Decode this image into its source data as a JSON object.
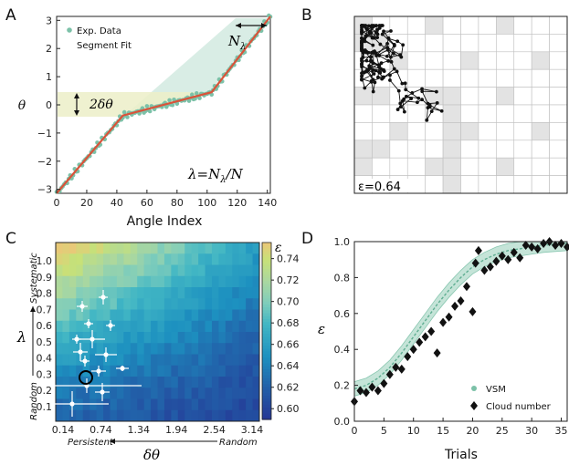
{
  "chart_data": [
    {
      "panel": "A",
      "type": "line",
      "xlabel": "Angle Index",
      "ylabel": "θ",
      "xlim": [
        0,
        142
      ],
      "ylim": [
        -3.14,
        3.14
      ],
      "xticks": [
        0,
        20,
        40,
        60,
        80,
        100,
        120,
        140
      ],
      "yticks": [
        -3,
        -2,
        -1,
        0,
        1,
        2,
        3
      ],
      "legend": [
        "Exp. Data",
        "Segment Fit"
      ],
      "fit_points": [
        [
          0,
          -3.14
        ],
        [
          44,
          -0.38
        ],
        [
          103,
          0.45
        ],
        [
          142,
          3.14
        ]
      ],
      "annotations": {
        "n_lambda": "N",
        "n_lambda_sub": "λ",
        "delta": "2δθ",
        "formula_lhs": "λ=N",
        "formula_sub": "λ",
        "formula_rhs": "/N"
      }
    },
    {
      "panel": "B",
      "type": "scatter",
      "grid_rows": 10,
      "grid_cols": 12,
      "label": "ε=0.64"
    },
    {
      "panel": "C",
      "type": "heatmap",
      "xlabel": "δθ",
      "ylabel": "λ",
      "xticks": [
        "0.14",
        "0.74",
        "1.34",
        "1.94",
        "2.54",
        "3.14"
      ],
      "yticks": [
        "0.1",
        "0.2",
        "0.3",
        "0.4",
        "0.5",
        "0.6",
        "0.7",
        "0.8",
        "0.9",
        "1.0"
      ],
      "colorbar_label": "ε",
      "colorbar_range": [
        0.59,
        0.755
      ],
      "colorbar_ticks": [
        "0.74",
        "0.72",
        "0.70",
        "0.68",
        "0.66",
        "0.64",
        "0.62",
        "0.60"
      ],
      "x_arrow_left": "Persistent",
      "x_arrow_right": "Random",
      "y_arrow_top": "Systematic",
      "y_arrow_bottom": "Random"
    },
    {
      "panel": "D",
      "type": "line",
      "xlabel": "Trials",
      "ylabel": "ε",
      "xlim": [
        0,
        36
      ],
      "ylim": [
        0,
        1.0
      ],
      "xticks": [
        0,
        5,
        10,
        15,
        20,
        25,
        30,
        35
      ],
      "yticks": [
        0.0,
        0.2,
        0.4,
        0.6,
        0.8,
        1.0
      ],
      "series": [
        {
          "name": "VSM",
          "x": [
            0,
            2,
            4,
            6,
            8,
            10,
            12,
            14,
            16,
            18,
            20,
            22,
            24,
            26,
            28,
            30,
            32,
            34,
            36
          ],
          "values": [
            0.18,
            0.2,
            0.24,
            0.3,
            0.38,
            0.47,
            0.56,
            0.65,
            0.73,
            0.8,
            0.86,
            0.9,
            0.93,
            0.95,
            0.96,
            0.97,
            0.98,
            0.985,
            0.99
          ]
        },
        {
          "name": "Cloud number",
          "x": [
            0,
            1,
            2,
            3,
            4,
            5,
            6,
            7,
            8,
            9,
            10,
            11,
            12,
            13,
            14,
            15,
            16,
            17,
            18,
            19,
            20,
            20.5,
            21,
            22,
            23,
            24,
            25,
            26,
            27,
            28,
            29,
            30,
            31,
            32,
            33,
            34,
            35,
            36
          ],
          "values": [
            0.11,
            0.17,
            0.16,
            0.19,
            0.17,
            0.21,
            0.26,
            0.3,
            0.29,
            0.36,
            0.4,
            0.44,
            0.47,
            0.5,
            0.38,
            0.55,
            0.58,
            0.64,
            0.67,
            0.75,
            0.61,
            0.88,
            0.95,
            0.84,
            0.86,
            0.89,
            0.92,
            0.9,
            0.94,
            0.91,
            0.98,
            0.97,
            0.96,
            0.99,
            1.0,
            0.98,
            0.99,
            0.97
          ]
        }
      ],
      "legend": [
        "VSM",
        "Cloud number"
      ]
    }
  ],
  "panel_labels": [
    "A",
    "B",
    "C",
    "D"
  ]
}
